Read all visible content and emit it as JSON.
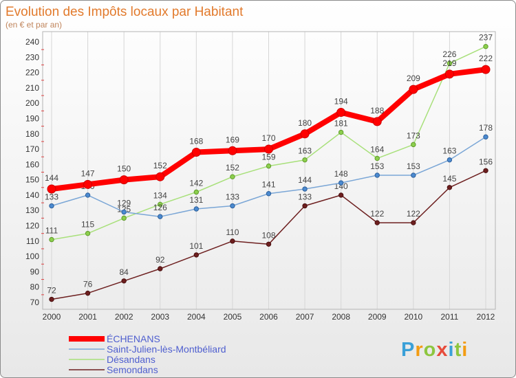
{
  "chart_data": {
    "type": "line",
    "title": "Evolution des Impôts locaux par Habitant",
    "subtitle": "(en € et par an)",
    "x": [
      "2000",
      "2001",
      "2002",
      "2003",
      "2004",
      "2005",
      "2006",
      "2007",
      "2008",
      "2009",
      "2010",
      "2011",
      "2012"
    ],
    "yticks": [
      70,
      80,
      90,
      100,
      110,
      120,
      130,
      140,
      150,
      160,
      170,
      180,
      190,
      200,
      210,
      220,
      230,
      240
    ],
    "ylim": [
      70,
      240
    ],
    "grid": true,
    "legend_position": "bottom-left",
    "series": [
      {
        "name": "ÉCHENANS",
        "color": "#ff0000",
        "marker_color": "#ff0000",
        "marker_stroke": "#cc0000",
        "values": [
          144,
          147,
          150,
          152,
          168,
          169,
          170,
          180,
          194,
          188,
          209,
          219,
          222
        ]
      },
      {
        "name": "Saint-Julien-lès-Montbéliard",
        "color": "#7aa6d6",
        "marker_color": "#4b8ad0",
        "marker_stroke": "#2d5f9a",
        "values": [
          133,
          140,
          129,
          126,
          131,
          133,
          141,
          144,
          148,
          153,
          153,
          163,
          178
        ]
      },
      {
        "name": "Désandans",
        "color": "#a8e07a",
        "marker_color": "#8ccf4d",
        "marker_stroke": "#5f9a2a",
        "values": [
          111,
          115,
          125,
          134,
          142,
          152,
          159,
          163,
          181,
          164,
          173,
          226,
          237
        ]
      },
      {
        "name": "Semondans",
        "color": "#6d1f1f",
        "marker_color": "#6d1f1f",
        "marker_stroke": "#4a0f0f",
        "values": [
          72,
          76,
          84,
          92,
          101,
          110,
          108,
          133,
          140,
          122,
          122,
          145,
          156
        ]
      }
    ]
  },
  "logo": {
    "letters": [
      {
        "char": "P",
        "color": "#3aa0d8"
      },
      {
        "char": "r",
        "color": "#f39c12"
      },
      {
        "char": "o",
        "color": "#8dc63f"
      },
      {
        "char": "x",
        "color": "#e74c3c"
      },
      {
        "char": "i",
        "color": "#3aa0d8"
      },
      {
        "char": "t",
        "color": "#8dc63f"
      },
      {
        "char": "i",
        "color": "#f39c12"
      }
    ]
  }
}
